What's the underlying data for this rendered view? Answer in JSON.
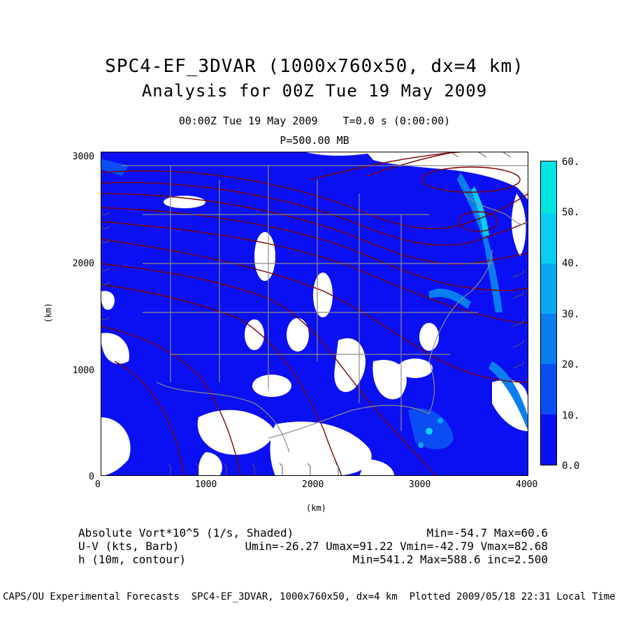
{
  "title_line1": "SPC4-EF_3DVAR (1000x760x50, dx=4 km)",
  "title_line2": "Analysis for 00Z Tue 19 May 2009",
  "valid_time": "00:00Z Tue 19 May 2009",
  "forecast_time": "T=0.0 s (0:00:00)",
  "level": "P=500.00 MB",
  "x_axis": {
    "unit": "(km)",
    "ticks": [
      "0",
      "1000",
      "2000",
      "3000",
      "4000"
    ]
  },
  "y_axis": {
    "unit": "(km)",
    "ticks": [
      "0",
      "1000",
      "2000",
      "3000"
    ]
  },
  "colorbar": {
    "labels": [
      "0.0",
      "10.",
      "20.",
      "30.",
      "40.",
      "50.",
      "60."
    ],
    "colors": [
      "#0a10f2",
      "#0a4df2",
      "#0a7ef0",
      "#0aa8f0",
      "#06cff2",
      "#00e5e0"
    ]
  },
  "map_colors": {
    "white_area": "#ffffff",
    "contour": "#7a0000",
    "borders": "#8a8a8a",
    "barbs": "#555555"
  },
  "fields": {
    "vort": {
      "name": "Absolute Vort*10^5 (1/s, Shaded)",
      "stats": "Min=-54.7 Max=60.6"
    },
    "wind": {
      "name": "U-V (kts, Barb)",
      "stats": "Umin=-26.27 Umax=91.22 Vmin=-42.79 Vmax=82.68"
    },
    "height": {
      "name": "h (10m, contour)",
      "stats": "Min=541.2 Max=588.6 inc=2.500"
    }
  },
  "footer": "CAPS/OU Experimental Forecasts  SPC4-EF_3DVAR, 1000x760x50, dx=4 km  Plotted 2009/05/18 22:31 Local Time"
}
